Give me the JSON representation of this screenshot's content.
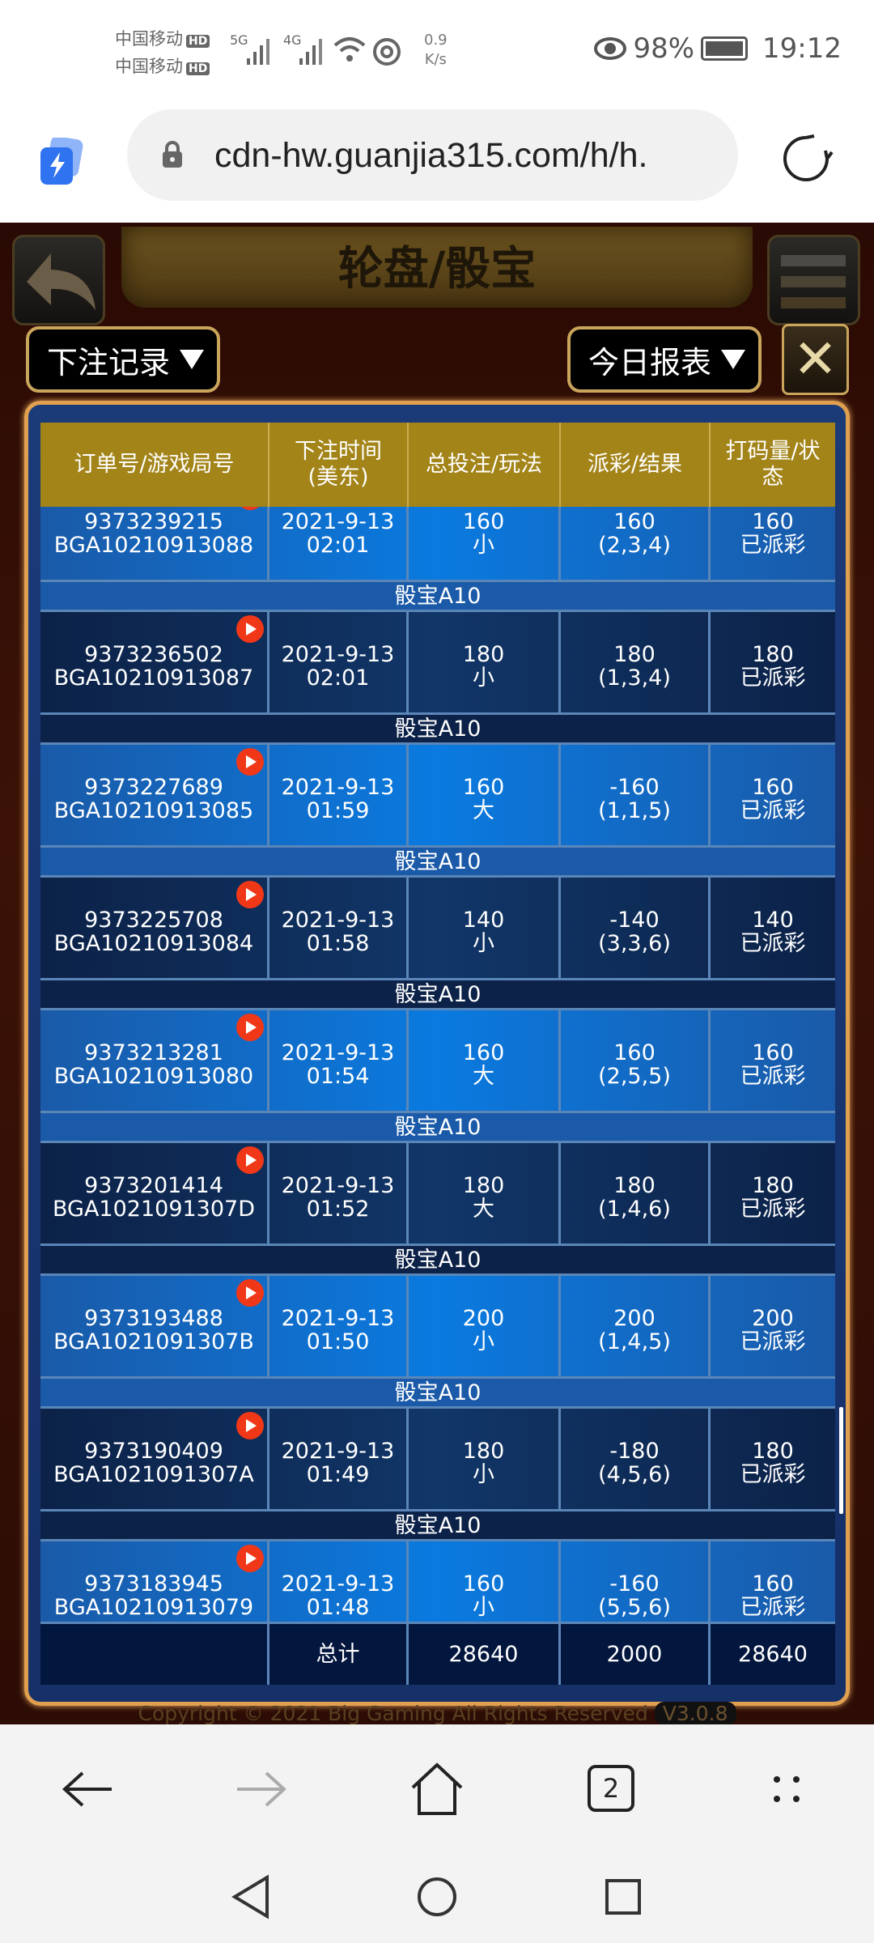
{
  "status_bar": {
    "carrier1": "中国移动",
    "carrier2": "中国移动",
    "hd": "HD",
    "sig1": "5G",
    "sig2": "4G",
    "speed_value": "0.9",
    "speed_unit": "K/s",
    "battery": "98%",
    "time": "19:12"
  },
  "browser": {
    "url": "cdn-hw.guanjia315.com/h/h."
  },
  "game": {
    "title": "轮盘/骰宝",
    "bet_record_dropdown": "下注记录",
    "report_dropdown": "今日报表",
    "copyright": "Copyright © 2021 Big Gaming All Rights Reserved",
    "version": "V3.0.8"
  },
  "table": {
    "headers": [
      "订单号/游戏局号",
      "下注时间\n(美东)",
      "总投注/玩法",
      "派彩/结果",
      "打码量/状\n态"
    ],
    "game_label": "骰宝A10",
    "rows": [
      {
        "order": "9373239215",
        "round": "BGA10210913088",
        "date": "2021-9-13",
        "time": "02:01",
        "bet": "160",
        "play": "小",
        "payout": "160",
        "result": "(2,3,4)",
        "turnover": "160",
        "status": "已派彩"
      },
      {
        "order": "9373236502",
        "round": "BGA10210913087",
        "date": "2021-9-13",
        "time": "02:01",
        "bet": "180",
        "play": "小",
        "payout": "180",
        "result": "(1,3,4)",
        "turnover": "180",
        "status": "已派彩"
      },
      {
        "order": "9373227689",
        "round": "BGA10210913085",
        "date": "2021-9-13",
        "time": "01:59",
        "bet": "160",
        "play": "大",
        "payout": "-160",
        "result": "(1,1,5)",
        "turnover": "160",
        "status": "已派彩"
      },
      {
        "order": "9373225708",
        "round": "BGA10210913084",
        "date": "2021-9-13",
        "time": "01:58",
        "bet": "140",
        "play": "小",
        "payout": "-140",
        "result": "(3,3,6)",
        "turnover": "140",
        "status": "已派彩"
      },
      {
        "order": "9373213281",
        "round": "BGA10210913080",
        "date": "2021-9-13",
        "time": "01:54",
        "bet": "160",
        "play": "大",
        "payout": "160",
        "result": "(2,5,5)",
        "turnover": "160",
        "status": "已派彩"
      },
      {
        "order": "9373201414",
        "round": "BGA1021091307D",
        "date": "2021-9-13",
        "time": "01:52",
        "bet": "180",
        "play": "大",
        "payout": "180",
        "result": "(1,4,6)",
        "turnover": "180",
        "status": "已派彩"
      },
      {
        "order": "9373193488",
        "round": "BGA1021091307B",
        "date": "2021-9-13",
        "time": "01:50",
        "bet": "200",
        "play": "小",
        "payout": "200",
        "result": "(1,4,5)",
        "turnover": "200",
        "status": "已派彩"
      },
      {
        "order": "9373190409",
        "round": "BGA1021091307A",
        "date": "2021-9-13",
        "time": "01:49",
        "bet": "180",
        "play": "小",
        "payout": "-180",
        "result": "(4,5,6)",
        "turnover": "180",
        "status": "已派彩"
      },
      {
        "order": "9373183945",
        "round": "BGA10210913079",
        "date": "2021-9-13",
        "time": "01:48",
        "bet": "160",
        "play": "小",
        "payout": "-160",
        "result": "(5,5,6)",
        "turnover": "160",
        "status": "已派彩"
      }
    ],
    "total": {
      "label": "总计",
      "bet": "28640",
      "payout": "2000",
      "turnover": "28640"
    }
  },
  "bottom_nav": {
    "tabs_count": "2"
  },
  "colors": {
    "header_gold": "#a38419",
    "row_light": "#0a7ae0",
    "row_dark": "#0c2248",
    "play_red": "#f03818",
    "frame": "#e0a050"
  }
}
